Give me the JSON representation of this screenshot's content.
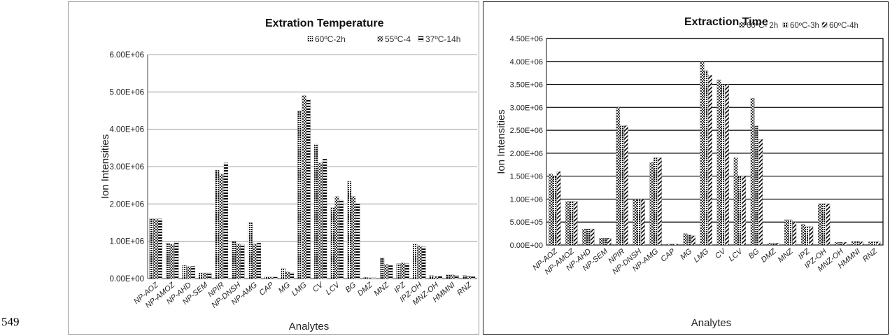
{
  "page": {
    "line_number": "549"
  },
  "colors": {
    "series": [
      "#1a1a1a",
      "#4d4d4d",
      "#000000"
    ],
    "grid": "#7f7f7f",
    "grid_strong": "#000000"
  },
  "chart_data": [
    {
      "type": "bar",
      "title": "Extration Temperature",
      "xlabel": "Analytes",
      "ylabel": "Ion Intensities",
      "ylim": [
        0,
        6000000
      ],
      "yticks": [
        "0.00E+00",
        "1.00E+06",
        "2.00E+06",
        "3.00E+06",
        "4.00E+06",
        "5.00E+06",
        "6.00E+06"
      ],
      "grid": true,
      "legend_position": "top-right",
      "categories": [
        "NP-AOZ",
        "NP-AMOZ",
        "NP-AHD",
        "NP-SEM",
        "NPIR",
        "NP-DNSH",
        "NP-AMG",
        "CAP",
        "MG",
        "LMG",
        "CV",
        "LCV",
        "BG",
        "DMZ",
        "MNZ",
        "IPZ",
        "IPZ-OH",
        "MNZ-OH",
        "HMMNI",
        "RNZ"
      ],
      "series": [
        {
          "name": "60ºC-2h",
          "pattern": "dots",
          "values": [
            1600000,
            950000,
            350000,
            150000,
            2900000,
            1000000,
            1500000,
            50000,
            270000,
            4500000,
            3600000,
            1900000,
            2600000,
            30000,
            550000,
            400000,
            920000,
            80000,
            100000,
            80000
          ]
        },
        {
          "name": "55ºC-4",
          "pattern": "checker",
          "values": [
            1600000,
            920000,
            320000,
            150000,
            2800000,
            930000,
            930000,
            40000,
            180000,
            4900000,
            3100000,
            2200000,
            2200000,
            20000,
            380000,
            420000,
            880000,
            60000,
            100000,
            70000
          ]
        },
        {
          "name": "37ºC-14h",
          "pattern": "hstripes",
          "values": [
            1600000,
            1000000,
            330000,
            150000,
            3100000,
            920000,
            950000,
            40000,
            150000,
            4800000,
            3200000,
            2100000,
            2000000,
            20000,
            350000,
            400000,
            850000,
            60000,
            90000,
            50000
          ]
        }
      ]
    },
    {
      "type": "bar",
      "title": "Extraction Time",
      "xlabel": "Analytes",
      "ylabel": "Ion Intensities",
      "ylim": [
        0,
        4500000
      ],
      "yticks": [
        "0.00E+00",
        "5.00E+05",
        "1.00E+06",
        "1.50E+06",
        "2.00E+06",
        "2.50E+06",
        "3.00E+06",
        "3.50E+06",
        "4.00E+06",
        "4.50E+06"
      ],
      "grid": true,
      "legend_position": "top-right",
      "categories": [
        "NP-AOZ",
        "NP-AMOZ",
        "NP-AHD",
        "NP-SEM",
        "NPIR",
        "NP-DNSH",
        "NP-AMG",
        "CAP",
        "MG",
        "LMG",
        "CV",
        "LCV",
        "BG",
        "DMZ",
        "MNZ",
        "IPZ",
        "IPZ-OH",
        "MNZ-OH",
        "HMMNI",
        "RNZ"
      ],
      "series": [
        {
          "name": "60ºC- 2h",
          "pattern": "checker",
          "values": [
            1550000,
            950000,
            350000,
            150000,
            3000000,
            1000000,
            1800000,
            20000,
            250000,
            4000000,
            3600000,
            1900000,
            3200000,
            40000,
            550000,
            450000,
            900000,
            60000,
            80000,
            70000
          ]
        },
        {
          "name": "60ºC-3h",
          "pattern": "dots",
          "values": [
            1500000,
            950000,
            350000,
            150000,
            2600000,
            1000000,
            1900000,
            20000,
            230000,
            3800000,
            3500000,
            1500000,
            2600000,
            40000,
            550000,
            400000,
            900000,
            60000,
            80000,
            70000
          ]
        },
        {
          "name": "60ºC-4h",
          "pattern": "diag",
          "values": [
            1600000,
            950000,
            350000,
            150000,
            2600000,
            1000000,
            1900000,
            20000,
            200000,
            3700000,
            3500000,
            1500000,
            2300000,
            40000,
            500000,
            400000,
            900000,
            60000,
            70000,
            70000
          ]
        }
      ]
    }
  ]
}
